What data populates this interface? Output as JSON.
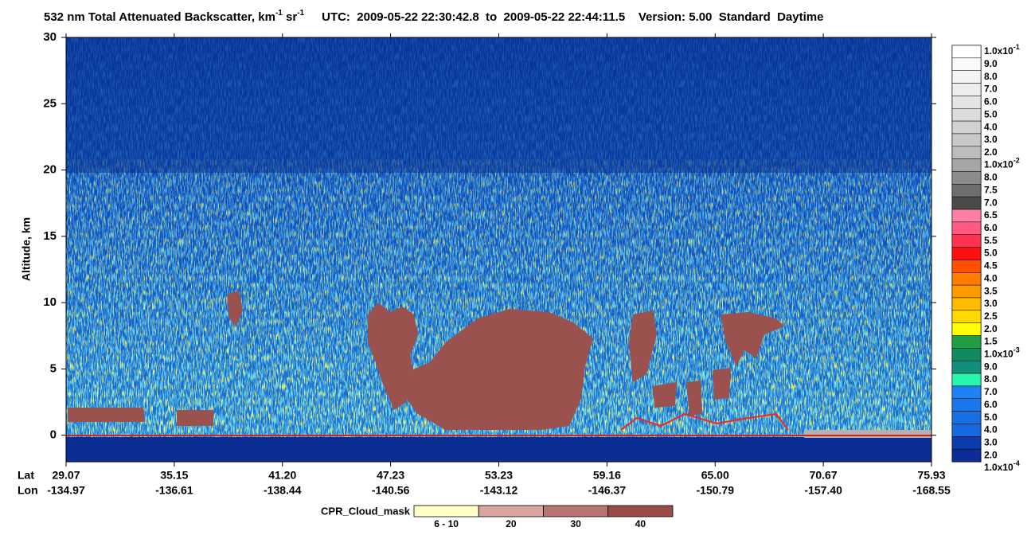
{
  "chart_data": {
    "type": "curtain",
    "title": {
      "main": "532 nm Total Attenuated Backscatter, km",
      "sup1": "-1",
      "mid": " sr",
      "sup2": "-1",
      "rest": "UTC:  2009-05-22 22:30:42.8  to  2009-05-22 22:44:11.5    Version: 5.00  Standard  Daytime"
    },
    "y_label": "Altitude, km",
    "ylim": [
      -2,
      30
    ],
    "yticks": [
      0,
      5,
      10,
      15,
      20,
      25,
      30
    ],
    "x_row_labels": [
      "Lat",
      "Lon"
    ],
    "lat_labels": [
      "29.07",
      "35.15",
      "41.20",
      "47.23",
      "53.23",
      "59.16",
      "65.00",
      "70.67",
      "75.93"
    ],
    "lon_labels": [
      "-134.97",
      "-136.61",
      "-138.44",
      "-140.56",
      "-143.12",
      "-146.37",
      "-150.79",
      "-157.40",
      "-168.55"
    ],
    "colorbar": {
      "labels": [
        {
          "base": "1.0x10",
          "exp": "-1"
        },
        "9.0",
        "8.0",
        "7.0",
        "6.0",
        "5.0",
        "4.0",
        "3.0",
        "2.0",
        {
          "base": "1.0x10",
          "exp": "-2"
        },
        "8.0",
        "7.5",
        "7.0",
        "6.5",
        "6.0",
        "5.5",
        "5.0",
        "4.5",
        "4.0",
        "3.5",
        "3.0",
        "2.5",
        "2.0",
        "1.5",
        {
          "base": "1.0x10",
          "exp": "-3"
        },
        "9.0",
        "8.0",
        "7.0",
        "6.0",
        "5.0",
        "4.0",
        "3.0",
        "2.0",
        {
          "base": "1.0x10",
          "exp": "-4"
        }
      ],
      "band_colors": [
        "#ffffff",
        "#fafafa",
        "#f4f4f4",
        "#ededed",
        "#e5e5e5",
        "#dcdcdc",
        "#d2d2d2",
        "#c8c8c8",
        "#bcbcbc",
        "#a6a6a6",
        "#8c8c8c",
        "#6e6e6e",
        "#4a4a4a",
        "#ff7ea6",
        "#ff5a82",
        "#ff3350",
        "#ff1010",
        "#ff5000",
        "#ff7c00",
        "#ff9900",
        "#ffbb00",
        "#ffd800",
        "#ffff00",
        "#1f9e45",
        "#108a5e",
        "#0f8f7c",
        "#28f5ae",
        "#1e82f5",
        "#1a78ea",
        "#1670e2",
        "#146ade",
        "#0c3cab",
        "#0a2d96"
      ]
    },
    "cpr_legend": {
      "title": "CPR_Cloud_mask",
      "categories": [
        "6 - 10",
        "20",
        "30",
        "40"
      ],
      "colors": [
        "#ffffc6",
        "#d8a5a3",
        "#b77472",
        "#9a4b4a"
      ]
    }
  }
}
